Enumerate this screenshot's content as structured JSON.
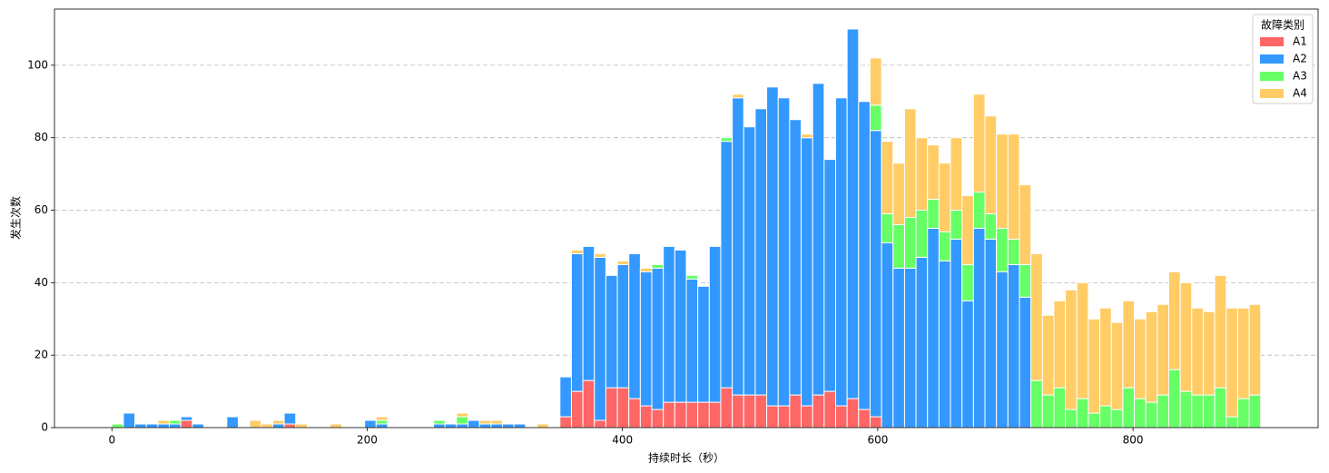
{
  "chart_data": {
    "type": "histogram",
    "stacked": true,
    "x_label": "持续时长（秒）",
    "y_label": "发生次数",
    "legend_title": "故障类别",
    "legend_position": "upper right",
    "grid": "y",
    "bins": [
      0,
      9,
      18,
      27,
      36,
      45,
      54,
      63,
      72,
      81,
      90,
      99,
      108,
      117,
      126,
      135,
      144,
      153,
      162,
      171,
      180,
      189,
      198,
      207,
      216,
      225,
      234,
      243,
      252,
      261,
      270,
      279,
      288,
      297,
      306,
      315,
      324,
      333,
      342,
      351,
      360,
      369,
      378,
      387,
      396,
      405,
      414,
      423,
      432,
      441,
      450,
      459,
      468,
      477,
      486,
      495,
      504,
      513,
      522,
      531,
      540,
      549,
      558,
      567,
      576,
      585,
      594,
      603,
      612,
      621,
      630,
      639,
      648,
      657,
      666,
      675,
      684,
      693,
      702,
      711,
      720,
      729,
      738,
      747,
      756,
      765,
      774,
      783,
      792,
      801,
      810,
      819,
      828,
      837,
      846,
      855,
      864,
      873,
      882,
      891,
      900
    ],
    "series": [
      {
        "name": "A1",
        "color": "#ff6666",
        "values": [
          0,
          0,
          0,
          0,
          0,
          0,
          2,
          0,
          0,
          0,
          0,
          0,
          0,
          0,
          0,
          1,
          0,
          0,
          0,
          0,
          0,
          0,
          0,
          0,
          0,
          0,
          0,
          0,
          0,
          0,
          0,
          0,
          0,
          0,
          0,
          0,
          0,
          0,
          0,
          3,
          10,
          13,
          2,
          11,
          11,
          8,
          6,
          5,
          7,
          7,
          7,
          7,
          7,
          11,
          9,
          9,
          9,
          6,
          6,
          9,
          6,
          9,
          10,
          6,
          8,
          5,
          3,
          0,
          0,
          0,
          0,
          0,
          0,
          0,
          0,
          0,
          0,
          0,
          0,
          0,
          0,
          0,
          0,
          0,
          0,
          0,
          0,
          0,
          0,
          0,
          0,
          0,
          0,
          0,
          0,
          0,
          0,
          0,
          0,
          0
        ]
      },
      {
        "name": "A2",
        "color": "#3399ff",
        "values": [
          0,
          4,
          1,
          1,
          1,
          1,
          1,
          1,
          0,
          0,
          3,
          0,
          0,
          0,
          1,
          3,
          0,
          0,
          0,
          0,
          0,
          0,
          2,
          1,
          0,
          0,
          0,
          0,
          1,
          1,
          1,
          2,
          1,
          1,
          1,
          1,
          0,
          0,
          0,
          11,
          38,
          37,
          45,
          31,
          34,
          40,
          37,
          39,
          43,
          42,
          34,
          32,
          43,
          68,
          82,
          74,
          79,
          88,
          85,
          76,
          74,
          86,
          64,
          85,
          102,
          85,
          79,
          51,
          44,
          44,
          47,
          55,
          46,
          52,
          35,
          55,
          52,
          43,
          45,
          36,
          0,
          0,
          0,
          0,
          0,
          0,
          0,
          0,
          0,
          0,
          0,
          0,
          0,
          0,
          0,
          0,
          0,
          0,
          0,
          0
        ]
      },
      {
        "name": "A3",
        "color": "#66ff66",
        "values": [
          1,
          0,
          0,
          0,
          0,
          1,
          0,
          0,
          0,
          0,
          0,
          0,
          0,
          0,
          0,
          0,
          0,
          0,
          0,
          0,
          0,
          0,
          0,
          1,
          0,
          0,
          0,
          0,
          1,
          0,
          2,
          0,
          0,
          0,
          0,
          0,
          0,
          0,
          0,
          0,
          0,
          0,
          0,
          0,
          0,
          0,
          0,
          1,
          0,
          0,
          1,
          0,
          0,
          1,
          0,
          0,
          0,
          0,
          0,
          0,
          0,
          0,
          0,
          0,
          0,
          0,
          7,
          8,
          12,
          14,
          13,
          8,
          8,
          8,
          10,
          10,
          7,
          12,
          7,
          9,
          13,
          9,
          11,
          5,
          8,
          4,
          6,
          5,
          11,
          8,
          7,
          9,
          16,
          10,
          9,
          9,
          11,
          3,
          8,
          9
        ]
      },
      {
        "name": "A4",
        "color": "#ffcc66",
        "values": [
          0,
          0,
          0,
          0,
          1,
          0,
          0,
          0,
          0,
          0,
          0,
          0,
          2,
          1,
          1,
          0,
          1,
          0,
          0,
          1,
          0,
          0,
          0,
          1,
          0,
          0,
          0,
          0,
          0,
          0,
          1,
          0,
          1,
          1,
          0,
          0,
          0,
          1,
          0,
          0,
          1,
          0,
          1,
          0,
          1,
          0,
          1,
          0,
          0,
          0,
          0,
          0,
          0,
          0,
          1,
          0,
          0,
          0,
          0,
          0,
          1,
          0,
          0,
          0,
          0,
          0,
          13,
          20,
          17,
          30,
          20,
          15,
          19,
          20,
          19,
          27,
          27,
          26,
          29,
          22,
          35,
          22,
          24,
          33,
          32,
          26,
          27,
          24,
          24,
          22,
          25,
          25,
          27,
          30,
          24,
          23,
          31,
          30,
          25,
          25
        ]
      }
    ],
    "xlim": [
      -45,
      945
    ],
    "ylim": [
      0,
      115.5
    ],
    "xticks": [
      0,
      200,
      400,
      600,
      800
    ],
    "yticks": [
      0,
      20,
      40,
      60,
      80,
      100
    ]
  }
}
